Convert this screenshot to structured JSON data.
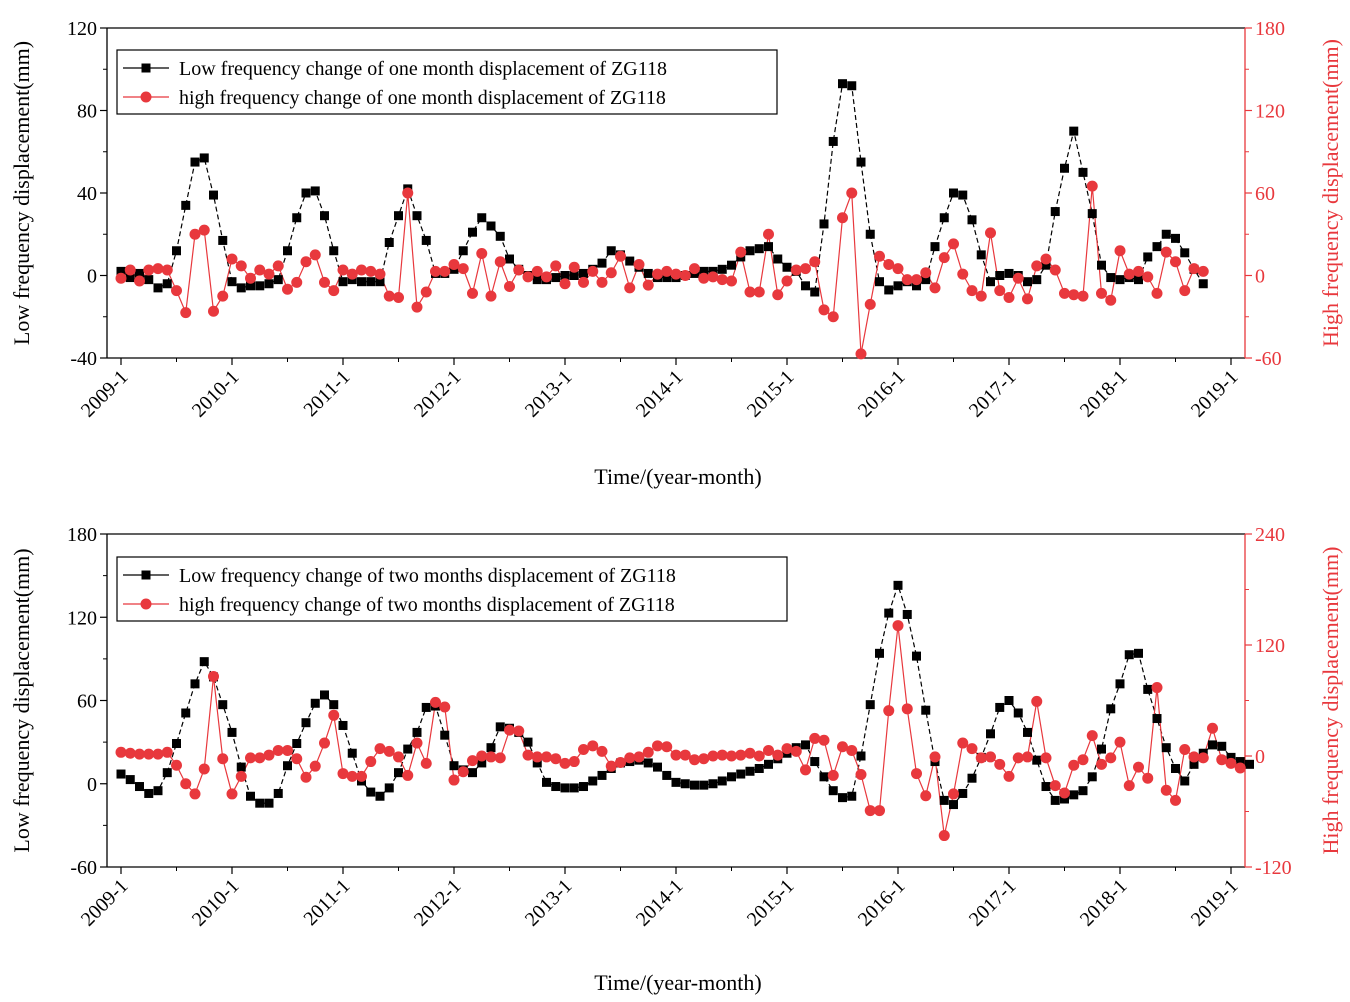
{
  "chart_data": [
    {
      "type": "line",
      "title": "",
      "xlabel": "Time/(year-month)",
      "ylabel_left": "Low frequency displacement(mm)",
      "ylabel_right": "High frequency displacement(mm)",
      "xlim": [
        0,
        120
      ],
      "ylim_left": [
        -40,
        120
      ],
      "ylim_right": [
        -60,
        180
      ],
      "yticks_left": [
        -40,
        0,
        40,
        80,
        120
      ],
      "yticks_right": [
        -60,
        0,
        60,
        120,
        180
      ],
      "xticks": [
        "2009-1",
        "2010-1",
        "2011-1",
        "2012-1",
        "2013-1",
        "2014-1",
        "2015-1",
        "2016-1",
        "2017-1",
        "2018-1",
        "2019-1"
      ],
      "legend_position": "top-left",
      "colors": {
        "low": "#000000",
        "high": "#e8383d",
        "right_axis": "#e8383d"
      },
      "series": [
        {
          "name": "Low frequency change of one month displacement of ZG118",
          "axis": "left",
          "marker": "square",
          "values": [
            2,
            -1,
            1,
            -2,
            -6,
            -4,
            12,
            34,
            55,
            57,
            39,
            17,
            -3,
            -6,
            -5,
            -5,
            -4,
            -2,
            12,
            28,
            40,
            41,
            29,
            12,
            -3,
            -2,
            -3,
            -3,
            -3,
            16,
            29,
            42,
            29,
            17,
            1,
            1,
            3,
            12,
            21,
            28,
            24,
            19,
            8,
            3,
            0,
            -2,
            -2,
            -1,
            0,
            0,
            1,
            3,
            6,
            12,
            10,
            7,
            4,
            1,
            -1,
            -1,
            -1,
            0,
            1,
            2,
            2,
            3,
            5,
            9,
            12,
            13,
            14,
            8,
            4,
            2,
            -5,
            -8,
            25,
            65,
            93,
            92,
            55,
            20,
            -3,
            -7,
            -5,
            -3,
            -5,
            -2,
            14,
            28,
            40,
            39,
            27,
            10,
            -3,
            0,
            1,
            0,
            -3,
            -2,
            5,
            31,
            52,
            70,
            50,
            30,
            5,
            -1,
            -2,
            -1,
            -2,
            9,
            14,
            20,
            18,
            11,
            3,
            -4
          ]
        },
        {
          "name": "high frequency change of one month displacement of ZG118",
          "axis": "right",
          "marker": "circle",
          "values": [
            -2,
            4,
            -4,
            4,
            5,
            4,
            -11,
            -27,
            30,
            33,
            -26,
            -15,
            12,
            7,
            -2,
            4,
            1,
            7,
            -10,
            -5,
            10,
            15,
            -5,
            -11,
            4,
            1,
            4,
            3,
            1,
            -15,
            -16,
            60,
            -23,
            -12,
            3,
            3,
            8,
            5,
            -13,
            16,
            -15,
            10,
            -8,
            4,
            -1,
            3,
            -1,
            7,
            -6,
            6,
            -5,
            3,
            -5,
            2,
            14,
            -9,
            8,
            -7,
            1,
            3,
            1,
            0,
            5,
            -2,
            -1,
            -3,
            -4,
            17,
            -12,
            -12,
            30,
            -14,
            -4,
            4,
            5,
            10,
            -25,
            -30,
            42,
            60,
            -57,
            -21,
            14,
            8,
            5,
            -3,
            -3,
            2,
            -9,
            13,
            23,
            1,
            -11,
            -15,
            31,
            -11,
            -16,
            -2,
            -17,
            7,
            12,
            4,
            -13,
            -14,
            -15,
            65,
            -13,
            -18,
            18,
            1,
            3,
            -1,
            -13,
            17,
            10,
            -11,
            5,
            3
          ]
        }
      ]
    },
    {
      "type": "line",
      "title": "",
      "xlabel": "Time/(year-month)",
      "ylabel_left": "Low frequency displacement(mm)",
      "ylabel_right": "High frequency displacement(mm)",
      "xlim": [
        0,
        120
      ],
      "ylim_left": [
        -60,
        180
      ],
      "ylim_right": [
        -120,
        240
      ],
      "yticks_left": [
        -60,
        0,
        60,
        120,
        180
      ],
      "yticks_right": [
        -120,
        0,
        120,
        240
      ],
      "xticks": [
        "2009-1",
        "2010-1",
        "2011-1",
        "2012-1",
        "2013-1",
        "2014-1",
        "2015-1",
        "2016-1",
        "2017-1",
        "2018-1",
        "2019-1"
      ],
      "legend_position": "top-left",
      "colors": {
        "low": "#000000",
        "high": "#e8383d",
        "right_axis": "#e8383d"
      },
      "series": [
        {
          "name": "Low frequency change of two months displacement of ZG118",
          "axis": "left",
          "marker": "square",
          "values": [
            7,
            3,
            -2,
            -7,
            -5,
            8,
            29,
            51,
            72,
            88,
            77,
            57,
            37,
            12,
            -9,
            -14,
            -14,
            -7,
            13,
            29,
            44,
            58,
            64,
            57,
            42,
            22,
            2,
            -6,
            -9,
            -3,
            8,
            25,
            37,
            55,
            56,
            35,
            13,
            10,
            8,
            15,
            26,
            41,
            40,
            37,
            30,
            15,
            1,
            -2,
            -3,
            -3,
            -2,
            2,
            6,
            11,
            15,
            16,
            17,
            15,
            12,
            6,
            1,
            0,
            -1,
            -1,
            0,
            2,
            5,
            7,
            9,
            11,
            14,
            18,
            22,
            26,
            28,
            16,
            5,
            -5,
            -10,
            -9,
            20,
            57,
            94,
            123,
            143,
            122,
            92,
            53,
            16,
            -12,
            -15,
            -7,
            4,
            19,
            36,
            55,
            60,
            51,
            37,
            17,
            -2,
            -12,
            -11,
            -8,
            -5,
            5,
            25,
            54,
            72,
            93,
            94,
            68,
            47,
            26,
            11,
            2,
            14,
            22,
            28,
            27,
            19,
            16,
            14
          ]
        },
        {
          "name": "high frequency change of two months displacement of ZG118",
          "axis": "right",
          "marker": "circle",
          "values": [
            4,
            3,
            2,
            2,
            2,
            4,
            -10,
            -30,
            -41,
            -14,
            86,
            -3,
            -41,
            -22,
            -2,
            -2,
            1,
            6,
            6,
            -3,
            -23,
            -11,
            14,
            44,
            -19,
            -22,
            -22,
            -6,
            8,
            5,
            -1,
            -21,
            14,
            -8,
            58,
            53,
            -26,
            -17,
            -5,
            0,
            -1,
            -2,
            28,
            27,
            1,
            -1,
            -1,
            -3,
            -8,
            -6,
            7,
            11,
            5,
            -11,
            -7,
            -2,
            -1,
            4,
            11,
            10,
            1,
            1,
            -4,
            -3,
            0,
            1,
            0,
            1,
            3,
            0,
            6,
            1,
            8,
            5,
            -15,
            19,
            17,
            -21,
            10,
            6,
            -20,
            -59,
            -59,
            49,
            141,
            51,
            -19,
            -43,
            -1,
            -86,
            -41,
            14,
            8,
            -2,
            -1,
            -9,
            -22,
            -2,
            -1,
            59,
            -2,
            -32,
            -40,
            -10,
            -4,
            22,
            -9,
            -2,
            15,
            -32,
            -12,
            -24,
            74,
            -37,
            -48,
            7,
            -1,
            -2,
            30,
            -4,
            -8,
            -13
          ]
        }
      ]
    }
  ]
}
